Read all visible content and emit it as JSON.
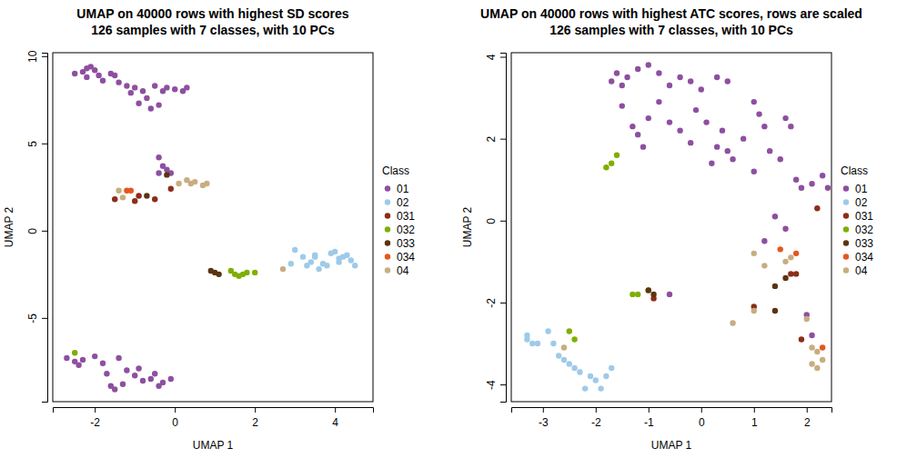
{
  "chart_data": [
    {
      "type": "scatter",
      "title": "UMAP on 40000 rows with highest SD scores",
      "subtitle": "126 samples with 7 classes, with 10 PCs",
      "x_label": "UMAP 1",
      "y_label": "UMAP 2",
      "legend_title": "Class",
      "legend": "right",
      "marker": "circle",
      "xlim": [
        -3.05,
        4.95
      ],
      "xticks": [
        -2,
        0,
        2,
        4
      ],
      "ylim": [
        -9.8,
        10.2
      ],
      "yticks": [
        -5,
        0,
        5,
        10
      ],
      "series": [
        {
          "name": "01",
          "color": "#8e4fa0",
          "x": [
            -2.5,
            -2.3,
            -2.2,
            -2.1,
            -2.0,
            -1.9,
            -2.2,
            -1.8,
            -1.6,
            -1.4,
            -1.2,
            -1.0,
            -0.8,
            -0.7,
            -0.9,
            -0.6,
            -0.4,
            -0.5,
            -0.2,
            0.0,
            0.2,
            0.3,
            -0.3,
            -1.5,
            -1.1,
            -2.7,
            -2.5,
            -2.4,
            -2.3,
            -2.0,
            -1.8,
            -1.7,
            -1.6,
            -1.5,
            -1.3,
            -1.2,
            -1.0,
            -0.9,
            -0.8,
            -0.6,
            -0.4,
            -0.3,
            -0.1,
            -1.4,
            -0.5,
            -0.4,
            -0.3,
            -0.2,
            -0.4,
            -0.1
          ],
          "y": [
            9.0,
            9.1,
            9.3,
            9.4,
            9.2,
            8.9,
            8.8,
            8.6,
            9.0,
            8.5,
            8.3,
            8.2,
            8.0,
            7.6,
            7.3,
            7.0,
            7.2,
            8.3,
            8.2,
            8.1,
            8.0,
            8.2,
            8.0,
            8.9,
            7.9,
            -7.3,
            -7.5,
            -7.7,
            -7.4,
            -7.2,
            -7.6,
            -8.2,
            -8.9,
            -9.1,
            -8.8,
            -8.0,
            -8.3,
            -7.9,
            -8.6,
            -8.5,
            -8.9,
            -8.7,
            -8.5,
            -7.3,
            -8.2,
            4.2,
            3.7,
            3.5,
            3.3,
            3.3
          ]
        },
        {
          "name": "02",
          "color": "#9ecae9",
          "x": [
            2.9,
            3.0,
            3.2,
            3.3,
            3.4,
            3.5,
            3.6,
            3.7,
            3.8,
            3.9,
            4.0,
            4.1,
            4.2,
            4.3,
            4.4,
            4.5,
            3.5,
            4.1
          ],
          "y": [
            -1.9,
            -1.1,
            -1.5,
            -2.0,
            -1.8,
            -1.5,
            -2.2,
            -1.9,
            -2.0,
            -1.3,
            -1.2,
            -1.8,
            -1.5,
            -1.4,
            -1.7,
            -2.0,
            -1.4,
            -1.6
          ]
        },
        {
          "name": "031",
          "color": "#8c2d19",
          "x": [
            -1.5,
            -1.0,
            -0.9,
            -0.5,
            -0.1
          ],
          "y": [
            1.8,
            1.7,
            2.0,
            1.8,
            2.4
          ]
        },
        {
          "name": "032",
          "color": "#7faf00",
          "x": [
            1.4,
            1.5,
            1.6,
            1.7,
            1.8,
            2.0,
            -2.5
          ],
          "y": [
            -2.3,
            -2.5,
            -2.6,
            -2.5,
            -2.4,
            -2.4,
            -7.0
          ]
        },
        {
          "name": "033",
          "color": "#5a3412",
          "x": [
            0.9,
            1.0,
            1.1,
            -0.7,
            -0.2
          ],
          "y": [
            -2.3,
            -2.4,
            -2.5,
            2.0,
            3.2
          ]
        },
        {
          "name": "034",
          "color": "#e6561e",
          "x": [
            -1.2,
            -1.1
          ],
          "y": [
            2.3,
            2.3
          ]
        },
        {
          "name": "04",
          "color": "#c8ad7f",
          "x": [
            -1.4,
            -1.3,
            0.1,
            0.3,
            0.5,
            0.7,
            0.8,
            0.4,
            2.7
          ],
          "y": [
            2.3,
            1.9,
            2.7,
            2.9,
            2.8,
            2.6,
            2.7,
            2.7,
            -2.2
          ]
        }
      ]
    },
    {
      "type": "scatter",
      "title": "UMAP on 40000 rows with highest ATC scores, rows are scaled",
      "subtitle": "126 samples with 7 classes, with 10 PCs",
      "x_label": "UMAP 1",
      "y_label": "UMAP 2",
      "legend_title": "Class",
      "legend": "right",
      "marker": "circle",
      "xlim": [
        -3.6,
        2.47
      ],
      "xticks": [
        -3,
        -2,
        -1,
        0,
        1,
        2
      ],
      "ylim": [
        -4.42,
        4.1
      ],
      "yticks": [
        -4,
        -2,
        0,
        2,
        4
      ],
      "series": [
        {
          "name": "01",
          "color": "#8e4fa0",
          "x": [
            -1.7,
            -1.6,
            -1.5,
            -1.4,
            -1.2,
            -1.0,
            -0.8,
            -0.6,
            -0.4,
            -0.2,
            0.0,
            0.3,
            0.5,
            -1.5,
            -1.3,
            -1.2,
            -1.0,
            -0.8,
            -0.6,
            -0.4,
            -0.1,
            0.1,
            0.3,
            0.4,
            0.5,
            0.6,
            0.8,
            1.0,
            1.1,
            1.2,
            1.3,
            1.6,
            1.7,
            1.8,
            1.9,
            2.1,
            2.3,
            2.4,
            1.0,
            1.5,
            1.4,
            1.6,
            1.2,
            -0.6,
            2.0,
            2.1,
            -1.1,
            0.2,
            -0.2
          ],
          "y": [
            3.4,
            3.6,
            3.3,
            3.5,
            3.7,
            3.8,
            3.6,
            3.3,
            3.5,
            3.4,
            3.2,
            3.5,
            3.4,
            2.8,
            2.3,
            2.1,
            2.5,
            2.9,
            2.4,
            2.2,
            2.7,
            2.4,
            1.8,
            2.2,
            1.7,
            1.5,
            2.0,
            2.9,
            2.6,
            2.3,
            1.7,
            2.5,
            2.3,
            1.0,
            0.8,
            0.9,
            1.1,
            0.8,
            1.2,
            1.5,
            0.1,
            -0.2,
            -0.5,
            -1.8,
            -2.3,
            -2.8,
            1.8,
            1.4,
            1.9
          ]
        },
        {
          "name": "02",
          "color": "#9ecae9",
          "x": [
            -3.3,
            -3.3,
            -3.2,
            -3.1,
            -2.9,
            -2.8,
            -2.7,
            -2.6,
            -2.5,
            -2.4,
            -2.3,
            -2.2,
            -2.1,
            -2.0,
            -1.9,
            -1.8,
            -1.7
          ],
          "y": [
            -2.8,
            -2.9,
            -3.0,
            -3.0,
            -2.7,
            -3.0,
            -3.3,
            -3.4,
            -3.5,
            -3.6,
            -3.7,
            -4.1,
            -3.8,
            -3.9,
            -4.1,
            -3.8,
            -3.6
          ]
        },
        {
          "name": "031",
          "color": "#8c2d19",
          "x": [
            2.2,
            1.8,
            1.7,
            1.0,
            1.9,
            -0.9
          ],
          "y": [
            0.3,
            -1.3,
            -1.3,
            -2.1,
            -2.9,
            -1.9
          ]
        },
        {
          "name": "032",
          "color": "#7faf00",
          "x": [
            -1.8,
            -1.7,
            -1.6,
            -1.3,
            -1.2,
            -1.0,
            -2.5,
            -2.4
          ],
          "y": [
            1.3,
            1.4,
            1.6,
            -1.8,
            -1.8,
            -1.7,
            -2.7,
            -2.9
          ]
        },
        {
          "name": "033",
          "color": "#5a3412",
          "x": [
            -1.0,
            -0.9,
            1.4,
            1.4,
            1.6
          ],
          "y": [
            -1.7,
            -1.8,
            -2.2,
            -1.6,
            -1.4
          ]
        },
        {
          "name": "034",
          "color": "#e6561e",
          "x": [
            1.5,
            1.8,
            2.3
          ],
          "y": [
            -0.7,
            -0.8,
            -3.1
          ]
        },
        {
          "name": "04",
          "color": "#c8ad7f",
          "x": [
            0.6,
            1.0,
            1.2,
            1.6,
            1.0,
            2.1,
            2.2,
            2.1,
            2.2,
            2.3,
            1.7,
            -2.6,
            2.0
          ],
          "y": [
            -2.5,
            -0.8,
            -1.1,
            -1.0,
            -2.2,
            -3.1,
            -3.2,
            -3.5,
            -3.6,
            -3.4,
            -0.9,
            -3.1,
            -2.4
          ]
        }
      ]
    }
  ]
}
